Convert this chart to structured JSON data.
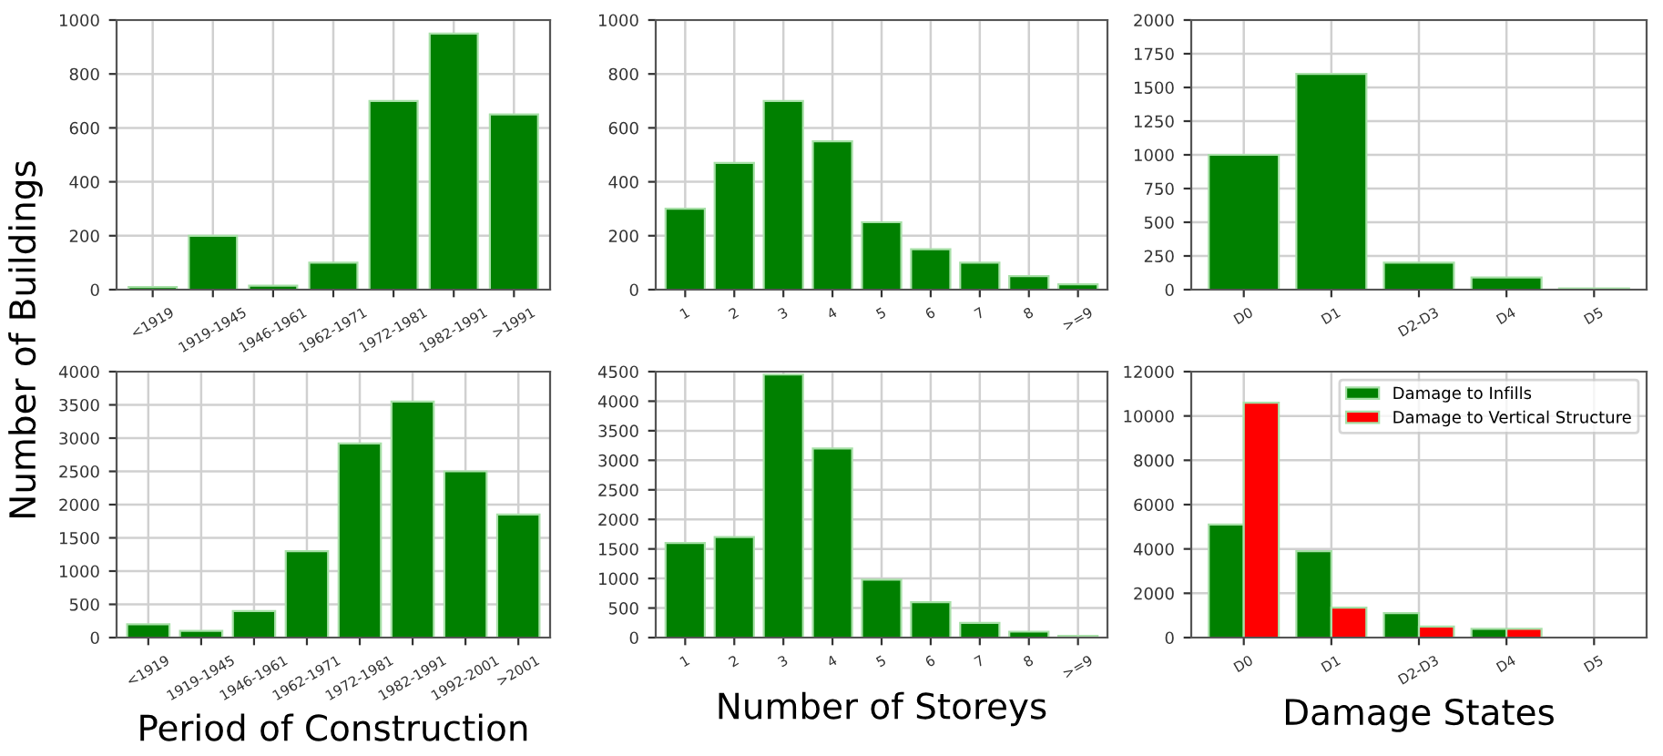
{
  "chart_data": [
    {
      "type": "bar",
      "categories": [
        "<1919",
        "1919-1945",
        "1946-1961",
        "1962-1971",
        "1972-1981",
        "1982-1991",
        ">1991"
      ],
      "values": [
        10,
        200,
        15,
        100,
        700,
        950,
        650
      ],
      "color": "#008000",
      "ylim": [
        0,
        1000
      ],
      "yticks": [
        0,
        200,
        400,
        600,
        800,
        1000
      ],
      "grid": true,
      "legend": false
    },
    {
      "type": "bar",
      "categories": [
        "1",
        "2",
        "3",
        "4",
        "5",
        "6",
        "7",
        "8",
        ">=9"
      ],
      "values": [
        300,
        470,
        700,
        550,
        250,
        150,
        100,
        50,
        20
      ],
      "color": "#008000",
      "ylim": [
        0,
        1000
      ],
      "yticks": [
        0,
        200,
        400,
        600,
        800,
        1000
      ],
      "grid": true,
      "legend": false
    },
    {
      "type": "bar",
      "categories": [
        "D0",
        "D1",
        "D2-D3",
        "D4",
        "D5"
      ],
      "values": [
        1000,
        1600,
        200,
        90,
        10
      ],
      "color": "#008000",
      "ylim": [
        0,
        2000
      ],
      "yticks": [
        0,
        250,
        500,
        750,
        1000,
        1250,
        1500,
        1750,
        2000
      ],
      "grid": true,
      "legend": false
    },
    {
      "type": "bar",
      "ylabel": "Number of Buildings",
      "xlabel": "Period of Construction",
      "categories": [
        "<1919",
        "1919-1945",
        "1946-1961",
        "1962-1971",
        "1972-1981",
        "1982-1991",
        "1992-2001",
        ">2001"
      ],
      "values": [
        200,
        100,
        400,
        1300,
        2920,
        3550,
        2500,
        1850
      ],
      "color": "#008000",
      "ylim": [
        0,
        4000
      ],
      "yticks": [
        0,
        500,
        1000,
        1500,
        2000,
        2500,
        3000,
        3500,
        4000
      ],
      "grid": true,
      "legend": false
    },
    {
      "type": "bar",
      "xlabel": "Number of Storeys",
      "categories": [
        "1",
        "2",
        "3",
        "4",
        "5",
        "6",
        "7",
        "8",
        ">=9"
      ],
      "values": [
        1600,
        1700,
        4450,
        3200,
        980,
        600,
        250,
        100,
        30
      ],
      "color": "#008000",
      "ylim": [
        0,
        4500
      ],
      "yticks": [
        0,
        500,
        1000,
        1500,
        2000,
        2500,
        3000,
        3500,
        4000,
        4500
      ],
      "grid": true,
      "legend": false
    },
    {
      "type": "bar",
      "xlabel": "Damage States",
      "categories": [
        "D0",
        "D1",
        "D2-D3",
        "D4",
        "D5"
      ],
      "series": [
        {
          "name": "Damage to Infills",
          "color": "#008000",
          "values": [
            5100,
            3900,
            1100,
            400,
            0
          ]
        },
        {
          "name": "Damage to Vertical Structure",
          "color": "#ff0000",
          "values": [
            10600,
            1350,
            500,
            400,
            0
          ]
        }
      ],
      "ylim": [
        0,
        12000
      ],
      "yticks": [
        0,
        2000,
        4000,
        6000,
        8000,
        10000,
        12000
      ],
      "grid": true,
      "legend": "top right"
    }
  ]
}
